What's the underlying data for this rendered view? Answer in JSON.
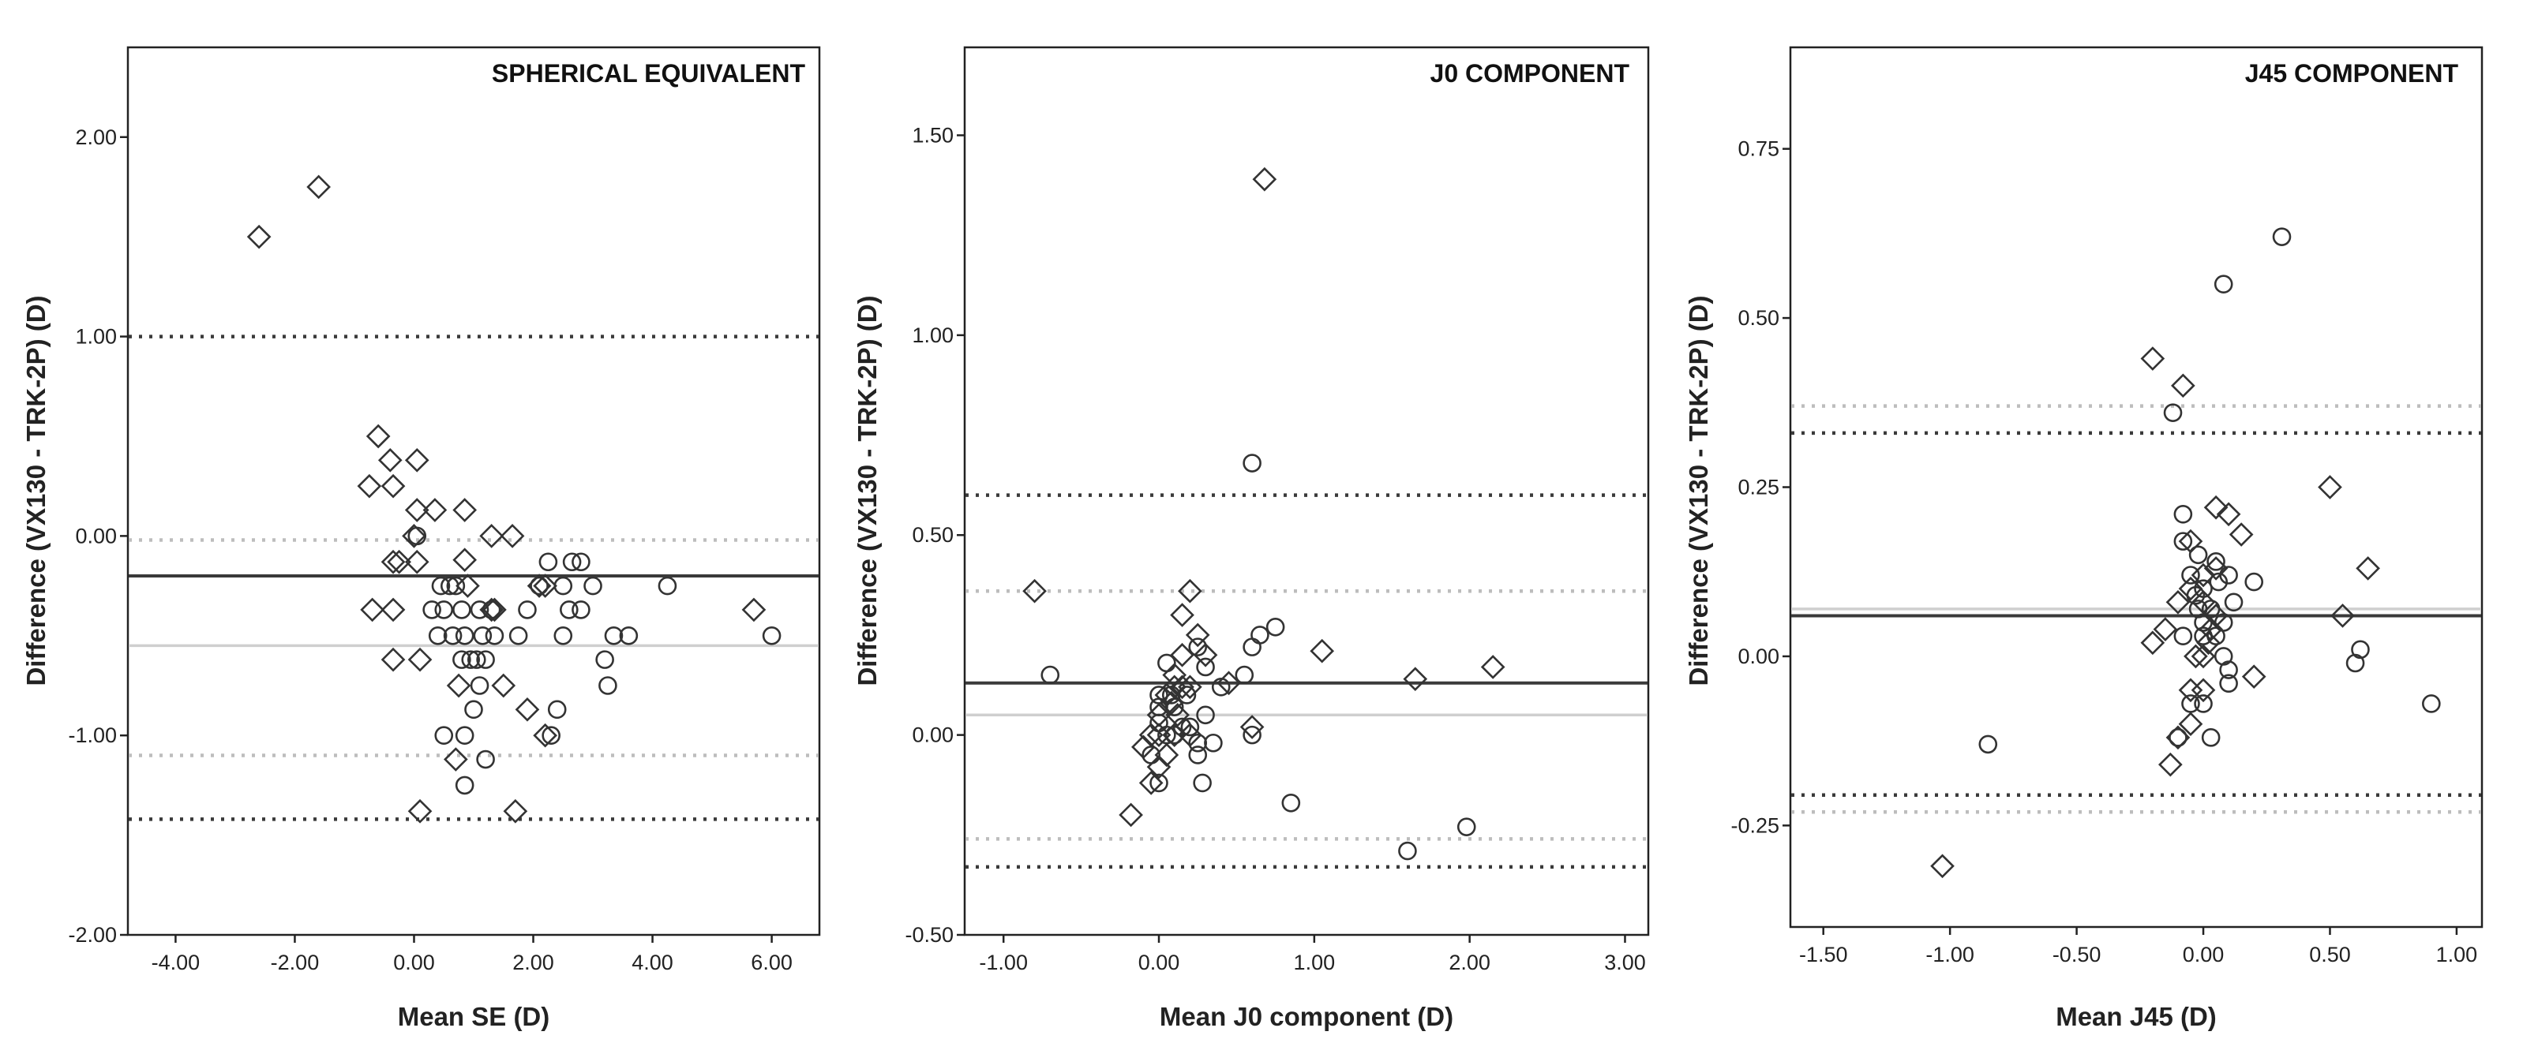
{
  "figure": {
    "ylabel": "Difference (VX130 - TRK-2P) (D)",
    "colors": {
      "mean_line": "#3a3a3a",
      "loa_line": "#3a3a3a",
      "mean_line_2": "#cfcfcf",
      "loa_line_2": "#bdbdbd",
      "markers": "#333333"
    }
  },
  "chart_data": [
    {
      "type": "scatter",
      "panel": "left",
      "title": "SPHERICAL EQUIVALENT",
      "xlabel": "Mean SE (D)",
      "ylabel": "Difference (VX130 - TRK-2P) (D)",
      "xlim": [
        -4.8,
        6.8
      ],
      "ylim": [
        -2.0,
        2.45
      ],
      "xticks": [
        -4,
        -2,
        0,
        2,
        4,
        6
      ],
      "xtick_labels": [
        "-4.00",
        "-2.00",
        "0.00",
        "2.00",
        "4.00",
        "6.00"
      ],
      "yticks": [
        -2,
        -1,
        0,
        1,
        2
      ],
      "ytick_labels": [
        "-2.00",
        "-1.00",
        "0.00",
        "1.00",
        "2.00"
      ],
      "lines": [
        {
          "name": "mean",
          "y": -0.2,
          "style": "solid",
          "color": "#3a3a3a"
        },
        {
          "name": "upper_loa",
          "y": 1.0,
          "style": "dotted",
          "color": "#3a3a3a"
        },
        {
          "name": "lower_loa",
          "y": -1.42,
          "style": "dotted",
          "color": "#3a3a3a"
        },
        {
          "name": "mean_2",
          "y": -0.55,
          "style": "solid",
          "color": "#cfcfcf"
        },
        {
          "name": "upper_loa_2",
          "y": -0.02,
          "style": "dotted",
          "color": "#bdbdbd"
        },
        {
          "name": "lower_loa_2",
          "y": -1.1,
          "style": "dotted",
          "color": "#bdbdbd"
        }
      ],
      "series": [
        {
          "name": "diamonds",
          "marker": "diamond",
          "points": [
            [
              -2.6,
              1.5
            ],
            [
              -1.6,
              1.75
            ],
            [
              -0.6,
              0.5
            ],
            [
              -0.4,
              0.38
            ],
            [
              -0.75,
              0.25
            ],
            [
              -0.35,
              0.25
            ],
            [
              0.05,
              0.38
            ],
            [
              0.05,
              0.13
            ],
            [
              0.35,
              0.13
            ],
            [
              0.85,
              0.13
            ],
            [
              1.3,
              0.0
            ],
            [
              1.65,
              0.0
            ],
            [
              -0.35,
              -0.13
            ],
            [
              -0.25,
              -0.13
            ],
            [
              0.05,
              -0.13
            ],
            [
              0.9,
              -0.25
            ],
            [
              -0.7,
              -0.37
            ],
            [
              -0.35,
              -0.37
            ],
            [
              1.3,
              -0.37
            ],
            [
              1.35,
              -0.37
            ],
            [
              -0.35,
              -0.62
            ],
            [
              0.1,
              -0.62
            ],
            [
              0.75,
              -0.75
            ],
            [
              1.5,
              -0.75
            ],
            [
              2.2,
              -0.25
            ],
            [
              1.9,
              -0.87
            ],
            [
              2.2,
              -1.0
            ],
            [
              0.7,
              -1.12
            ],
            [
              0.1,
              -1.38
            ],
            [
              1.7,
              -1.38
            ],
            [
              5.7,
              -0.37
            ],
            [
              2.1,
              -0.25
            ],
            [
              0.0,
              0.0
            ],
            [
              0.85,
              -0.12
            ]
          ]
        },
        {
          "name": "circles",
          "marker": "circle",
          "points": [
            [
              0.05,
              0.0
            ],
            [
              0.45,
              -0.25
            ],
            [
              0.7,
              -0.25
            ],
            [
              0.3,
              -0.37
            ],
            [
              0.5,
              -0.37
            ],
            [
              0.8,
              -0.37
            ],
            [
              1.1,
              -0.37
            ],
            [
              1.3,
              -0.37
            ],
            [
              0.4,
              -0.5
            ],
            [
              0.65,
              -0.5
            ],
            [
              0.85,
              -0.5
            ],
            [
              1.15,
              -0.5
            ],
            [
              1.75,
              -0.5
            ],
            [
              2.5,
              -0.5
            ],
            [
              3.35,
              -0.5
            ],
            [
              3.6,
              -0.5
            ],
            [
              0.8,
              -0.62
            ],
            [
              0.95,
              -0.62
            ],
            [
              1.05,
              -0.62
            ],
            [
              1.2,
              -0.62
            ],
            [
              3.2,
              -0.62
            ],
            [
              1.1,
              -0.75
            ],
            [
              3.25,
              -0.75
            ],
            [
              1.0,
              -0.87
            ],
            [
              2.4,
              -0.87
            ],
            [
              0.5,
              -1.0
            ],
            [
              0.85,
              -1.0
            ],
            [
              2.3,
              -1.0
            ],
            [
              1.2,
              -1.12
            ],
            [
              0.85,
              -1.25
            ],
            [
              2.25,
              -0.13
            ],
            [
              2.65,
              -0.13
            ],
            [
              2.8,
              -0.13
            ],
            [
              2.1,
              -0.25
            ],
            [
              2.5,
              -0.25
            ],
            [
              3.0,
              -0.25
            ],
            [
              4.25,
              -0.25
            ],
            [
              1.9,
              -0.37
            ],
            [
              2.6,
              -0.37
            ],
            [
              2.8,
              -0.37
            ],
            [
              6.0,
              -0.5
            ],
            [
              0.6,
              -0.25
            ],
            [
              1.35,
              -0.5
            ]
          ]
        }
      ]
    },
    {
      "type": "scatter",
      "panel": "middle",
      "title": "J0 COMPONENT",
      "xlabel": "Mean J0 component (D)",
      "ylabel": "Difference (VX130 - TRK-2P) (D)",
      "xlim": [
        -1.25,
        3.15
      ],
      "ylim": [
        -0.5,
        1.72
      ],
      "xticks": [
        -1,
        0,
        1,
        2,
        3
      ],
      "xtick_labels": [
        "-1.00",
        "0.00",
        "1.00",
        "2.00",
        "3.00"
      ],
      "yticks": [
        -0.5,
        0,
        0.5,
        1.0,
        1.5
      ],
      "ytick_labels": [
        "-0.50",
        "0.00",
        "0.50",
        "1.00",
        "1.50"
      ],
      "lines": [
        {
          "name": "mean",
          "y": 0.13,
          "style": "solid",
          "color": "#3a3a3a"
        },
        {
          "name": "upper_loa",
          "y": 0.6,
          "style": "dotted",
          "color": "#3a3a3a"
        },
        {
          "name": "lower_loa",
          "y": -0.33,
          "style": "dotted",
          "color": "#3a3a3a"
        },
        {
          "name": "mean_2",
          "y": 0.05,
          "style": "solid",
          "color": "#cfcfcf"
        },
        {
          "name": "upper_loa_2",
          "y": 0.36,
          "style": "dotted",
          "color": "#bdbdbd"
        },
        {
          "name": "lower_loa_2",
          "y": -0.26,
          "style": "dotted",
          "color": "#bdbdbd"
        }
      ],
      "series": [
        {
          "name": "diamonds",
          "marker": "diamond",
          "points": [
            [
              0.68,
              1.39
            ],
            [
              -0.8,
              0.36
            ],
            [
              0.2,
              0.36
            ],
            [
              0.15,
              0.3
            ],
            [
              0.25,
              0.25
            ],
            [
              0.15,
              0.2
            ],
            [
              0.3,
              0.2
            ],
            [
              0.1,
              0.15
            ],
            [
              0.45,
              0.13
            ],
            [
              1.05,
              0.21
            ],
            [
              1.65,
              0.14
            ],
            [
              2.15,
              0.17
            ],
            [
              0.6,
              0.02
            ],
            [
              0.0,
              0.05
            ],
            [
              0.05,
              0.1
            ],
            [
              0.1,
              0.12
            ],
            [
              0.15,
              0.12
            ],
            [
              0.2,
              0.12
            ],
            [
              -0.05,
              0.0
            ],
            [
              0.0,
              0.0
            ],
            [
              0.1,
              0.0
            ],
            [
              0.2,
              0.0
            ],
            [
              -0.1,
              -0.03
            ],
            [
              0.05,
              -0.05
            ],
            [
              0.0,
              -0.08
            ],
            [
              -0.05,
              -0.12
            ],
            [
              -0.18,
              -0.2
            ],
            [
              0.12,
              0.05
            ],
            [
              0.08,
              0.08
            ]
          ]
        },
        {
          "name": "circles",
          "marker": "circle",
          "points": [
            [
              0.6,
              0.68
            ],
            [
              -0.7,
              0.15
            ],
            [
              0.75,
              0.27
            ],
            [
              0.65,
              0.25
            ],
            [
              0.6,
              0.22
            ],
            [
              0.25,
              0.22
            ],
            [
              0.3,
              0.17
            ],
            [
              0.55,
              0.15
            ],
            [
              0.4,
              0.12
            ],
            [
              0.05,
              0.18
            ],
            [
              0.0,
              0.1
            ],
            [
              0.1,
              0.07
            ],
            [
              0.3,
              0.05
            ],
            [
              0.0,
              0.03
            ],
            [
              0.15,
              0.02
            ],
            [
              0.2,
              0.02
            ],
            [
              0.05,
              0.0
            ],
            [
              0.1,
              0.0
            ],
            [
              0.25,
              -0.02
            ],
            [
              0.35,
              -0.02
            ],
            [
              0.6,
              0.0
            ],
            [
              0.25,
              -0.05
            ],
            [
              0.85,
              -0.17
            ],
            [
              0.28,
              -0.12
            ],
            [
              -0.05,
              -0.05
            ],
            [
              0.0,
              -0.12
            ],
            [
              1.6,
              -0.29
            ],
            [
              1.98,
              -0.23
            ],
            [
              0.08,
              0.1
            ],
            [
              0.18,
              0.1
            ],
            [
              0.0,
              0.07
            ]
          ]
        }
      ]
    },
    {
      "type": "scatter",
      "panel": "right",
      "title": "J45 COMPONENT",
      "xlabel": "Mean J45 (D)",
      "ylabel": "Difference (VX130 - TRK-2P) (D)",
      "xlim": [
        -1.63,
        1.1
      ],
      "ylim": [
        -0.4,
        0.9
      ],
      "xticks": [
        -1.5,
        -1.0,
        -0.5,
        0,
        0.5,
        1.0
      ],
      "xtick_labels": [
        "-1.50",
        "-1.00",
        "-0.50",
        "0.00",
        "0.50",
        "1.00"
      ],
      "yticks": [
        -0.25,
        0,
        0.25,
        0.5,
        0.75
      ],
      "ytick_labels": [
        "-0.25",
        "0.00",
        "0.25",
        "0.50",
        "0.75"
      ],
      "lines": [
        {
          "name": "mean",
          "y": 0.06,
          "style": "solid",
          "color": "#3a3a3a"
        },
        {
          "name": "upper_loa",
          "y": 0.33,
          "style": "dotted",
          "color": "#3a3a3a"
        },
        {
          "name": "lower_loa",
          "y": -0.205,
          "style": "dotted",
          "color": "#3a3a3a"
        },
        {
          "name": "mean_2",
          "y": 0.07,
          "style": "solid",
          "color": "#cfcfcf"
        },
        {
          "name": "upper_loa_2",
          "y": 0.37,
          "style": "dotted",
          "color": "#bdbdbd"
        },
        {
          "name": "lower_loa_2",
          "y": -0.23,
          "style": "dotted",
          "color": "#bdbdbd"
        }
      ],
      "series": [
        {
          "name": "diamonds",
          "marker": "diamond",
          "points": [
            [
              -1.03,
              -0.31
            ],
            [
              -0.2,
              0.44
            ],
            [
              -0.08,
              0.4
            ],
            [
              0.5,
              0.25
            ],
            [
              0.65,
              0.13
            ],
            [
              0.55,
              0.06
            ],
            [
              -0.1,
              0.08
            ],
            [
              -0.05,
              0.17
            ],
            [
              0.05,
              0.22
            ],
            [
              0.15,
              0.18
            ],
            [
              0.1,
              0.21
            ],
            [
              -0.2,
              0.02
            ],
            [
              -0.15,
              0.04
            ],
            [
              -0.05,
              0.1
            ],
            [
              0.0,
              0.12
            ],
            [
              0.05,
              0.13
            ],
            [
              0.0,
              0.08
            ],
            [
              0.05,
              0.06
            ],
            [
              -0.03,
              0.0
            ],
            [
              0.0,
              0.0
            ],
            [
              0.02,
              0.02
            ],
            [
              -0.05,
              -0.05
            ],
            [
              0.0,
              -0.05
            ],
            [
              -0.05,
              -0.1
            ],
            [
              -0.1,
              -0.12
            ],
            [
              -0.13,
              -0.16
            ],
            [
              0.2,
              -0.03
            ],
            [
              0.03,
              0.04
            ]
          ]
        },
        {
          "name": "circles",
          "marker": "circle",
          "points": [
            [
              0.31,
              0.62
            ],
            [
              0.08,
              0.55
            ],
            [
              -0.12,
              0.36
            ],
            [
              -0.85,
              -0.13
            ],
            [
              0.9,
              -0.07
            ],
            [
              0.62,
              0.01
            ],
            [
              0.6,
              -0.01
            ],
            [
              -0.08,
              0.21
            ],
            [
              -0.08,
              0.17
            ],
            [
              -0.02,
              0.15
            ],
            [
              0.05,
              0.14
            ],
            [
              0.2,
              0.11
            ],
            [
              0.1,
              0.12
            ],
            [
              -0.05,
              0.12
            ],
            [
              0.0,
              0.1
            ],
            [
              -0.02,
              0.07
            ],
            [
              0.03,
              0.07
            ],
            [
              0.08,
              0.05
            ],
            [
              -0.08,
              0.03
            ],
            [
              0.0,
              0.03
            ],
            [
              0.05,
              0.03
            ],
            [
              0.1,
              -0.04
            ],
            [
              -0.05,
              -0.07
            ],
            [
              0.0,
              -0.07
            ],
            [
              0.03,
              -0.12
            ],
            [
              -0.1,
              -0.12
            ],
            [
              0.08,
              0.0
            ],
            [
              0.1,
              -0.02
            ],
            [
              0.0,
              0.05
            ],
            [
              -0.03,
              0.09
            ],
            [
              0.06,
              0.11
            ],
            [
              0.12,
              0.08
            ]
          ]
        }
      ]
    }
  ]
}
